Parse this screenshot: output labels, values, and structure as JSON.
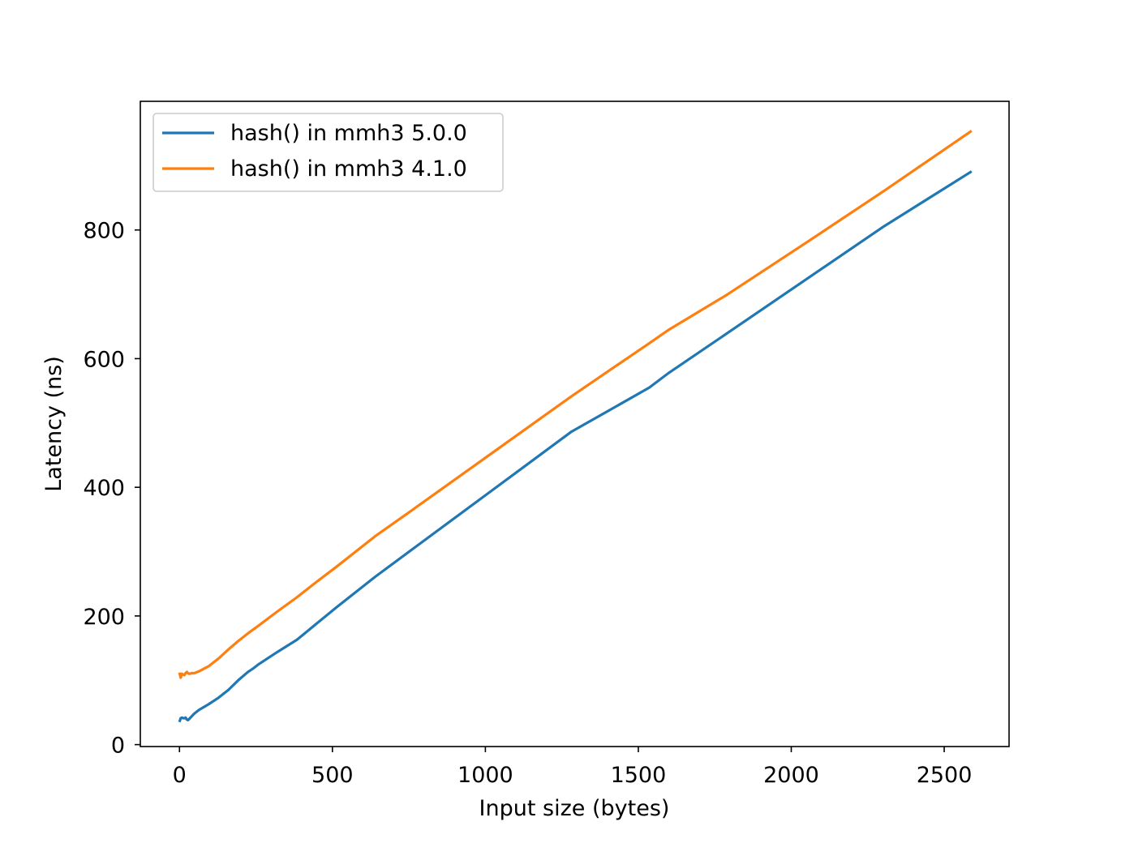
{
  "chart_data": {
    "type": "line",
    "title": "",
    "xlabel": "Input size (bytes)",
    "ylabel": "Latency (ns)",
    "xlim": [
      -128,
      2712
    ],
    "ylim": [
      -3,
      1000
    ],
    "xticks": [
      0,
      500,
      1000,
      1500,
      2000,
      2500
    ],
    "yticks": [
      0,
      200,
      400,
      600,
      800
    ],
    "grid": false,
    "legend_position": "upper-left",
    "series": [
      {
        "name": "hash() in mmh3 5.0.0",
        "color": "#1f77b4",
        "points": [
          [
            1,
            37
          ],
          [
            4,
            41
          ],
          [
            8,
            42
          ],
          [
            12,
            41
          ],
          [
            16,
            41
          ],
          [
            20,
            42
          ],
          [
            24,
            39
          ],
          [
            28,
            38
          ],
          [
            32,
            40
          ],
          [
            40,
            44
          ],
          [
            48,
            48
          ],
          [
            64,
            54
          ],
          [
            96,
            63
          ],
          [
            128,
            73
          ],
          [
            144,
            79
          ],
          [
            160,
            85
          ],
          [
            192,
            100
          ],
          [
            224,
            113
          ],
          [
            240,
            118
          ],
          [
            256,
            124
          ],
          [
            320,
            144
          ],
          [
            384,
            163
          ],
          [
            448,
            188
          ],
          [
            512,
            213
          ],
          [
            640,
            261
          ],
          [
            768,
            306
          ],
          [
            1024,
            396
          ],
          [
            1280,
            486
          ],
          [
            1536,
            555
          ],
          [
            1600,
            578
          ],
          [
            1792,
            640
          ],
          [
            2048,
            723
          ],
          [
            2304,
            806
          ],
          [
            2586,
            890
          ]
        ]
      },
      {
        "name": "hash() in mmh3 4.1.0",
        "color": "#ff7f0e",
        "points": [
          [
            1,
            110
          ],
          [
            4,
            104
          ],
          [
            8,
            110
          ],
          [
            12,
            109
          ],
          [
            16,
            108
          ],
          [
            20,
            111
          ],
          [
            24,
            113
          ],
          [
            28,
            111
          ],
          [
            32,
            110
          ],
          [
            40,
            111
          ],
          [
            48,
            111
          ],
          [
            64,
            114
          ],
          [
            96,
            122
          ],
          [
            128,
            134
          ],
          [
            160,
            148
          ],
          [
            192,
            161
          ],
          [
            224,
            173
          ],
          [
            256,
            184
          ],
          [
            320,
            207
          ],
          [
            384,
            229
          ],
          [
            448,
            253
          ],
          [
            512,
            276
          ],
          [
            640,
            324
          ],
          [
            768,
            367
          ],
          [
            1024,
            454
          ],
          [
            1280,
            541
          ],
          [
            1536,
            624
          ],
          [
            1600,
            645
          ],
          [
            1792,
            700
          ],
          [
            2048,
            780
          ],
          [
            2304,
            861
          ],
          [
            2586,
            953
          ]
        ]
      }
    ]
  }
}
